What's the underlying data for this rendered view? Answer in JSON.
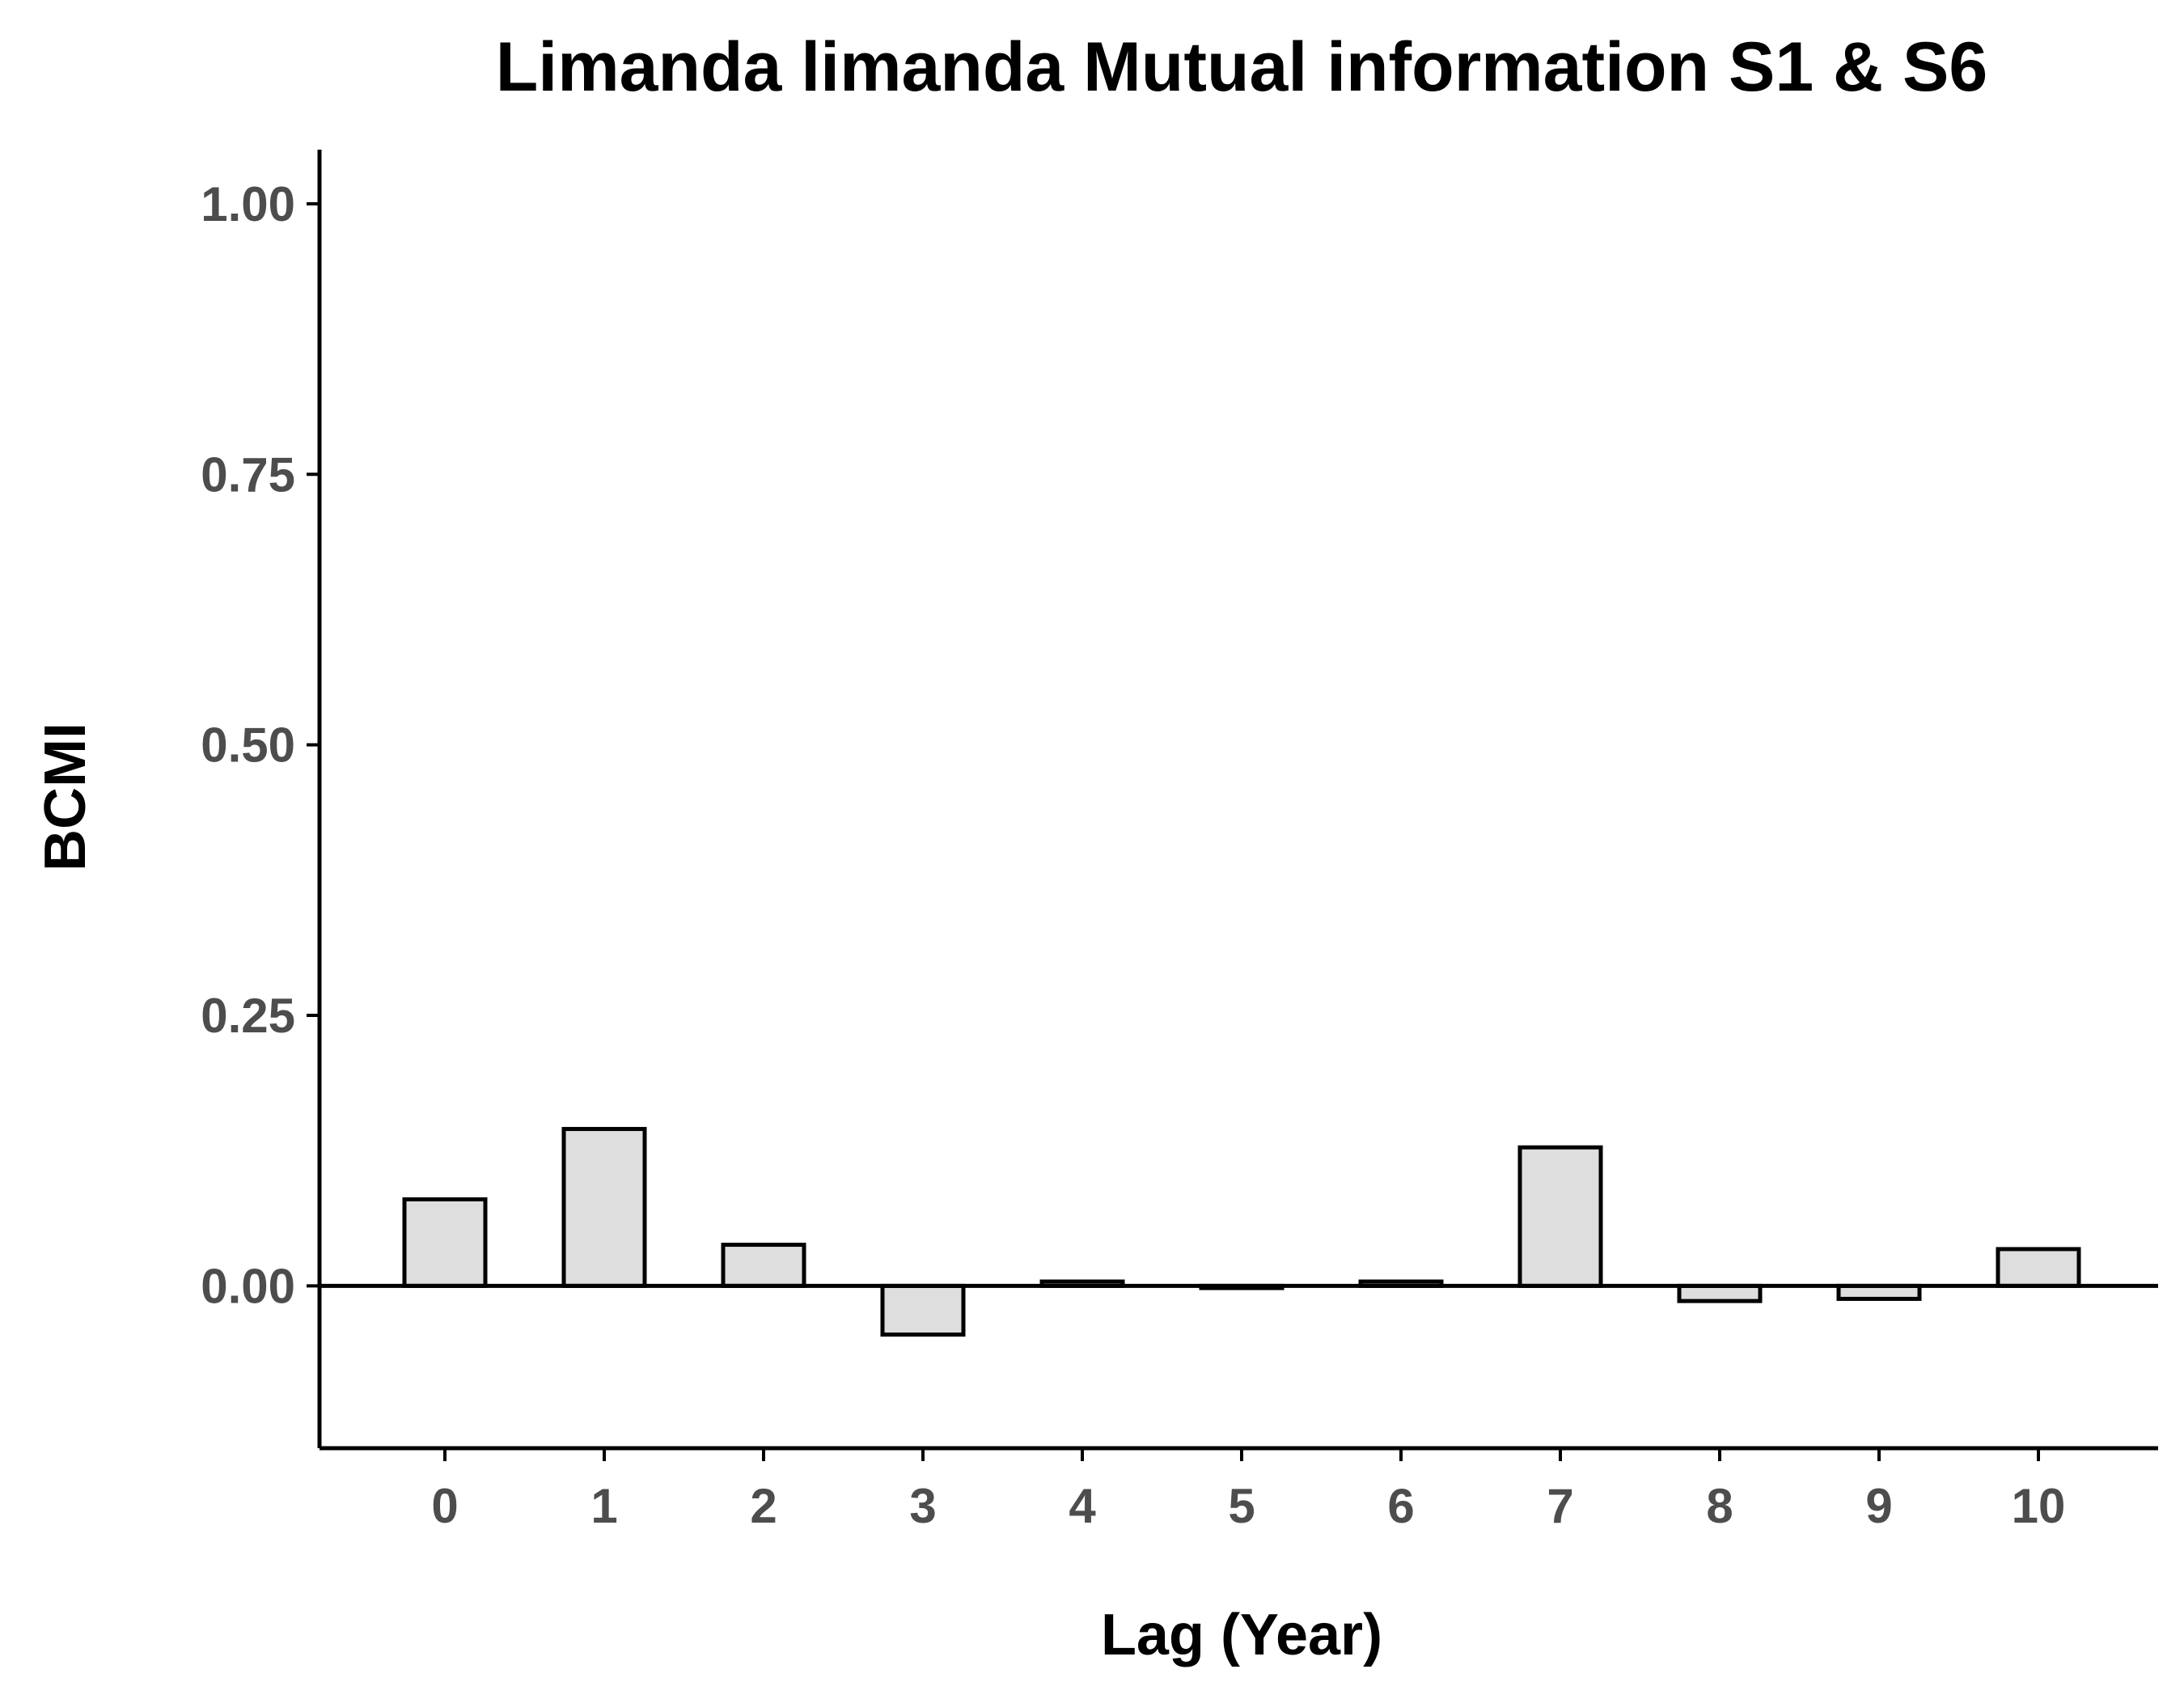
{
  "chart_data": {
    "type": "bar",
    "title": "Limanda limanda Mutual information S1 & S6",
    "xlabel": "Lag (Year)",
    "ylabel": "BCMI",
    "categories": [
      "0",
      "1",
      "2",
      "3",
      "4",
      "5",
      "6",
      "7",
      "8",
      "9",
      "10"
    ],
    "values": [
      0.08,
      0.145,
      0.038,
      -0.045,
      0.004,
      -0.002,
      0.004,
      0.128,
      -0.014,
      -0.012,
      0.034
    ],
    "ylim": [
      -0.15,
      1.05
    ],
    "yticks": [
      0.0,
      0.25,
      0.5,
      0.75,
      1.0
    ],
    "ytick_labels": [
      "0.00",
      "0.25",
      "0.50",
      "0.75",
      "1.00"
    ],
    "grid": false,
    "reference_line": 0,
    "colors": {
      "bar_fill": "#dedede",
      "bar_stroke": "#000000",
      "tick_label": "#4d4d4d",
      "text": "#000000"
    }
  }
}
